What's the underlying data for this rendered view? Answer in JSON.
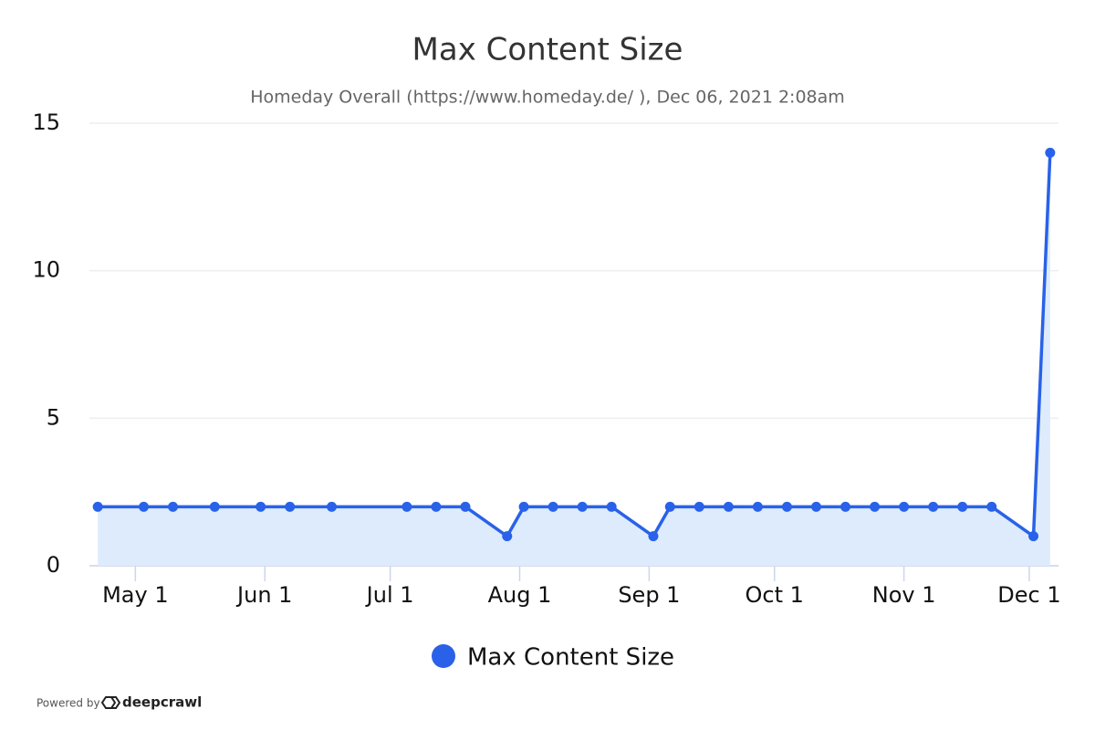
{
  "chart_data": {
    "type": "line",
    "title": "Max Content Size",
    "subtitle": "Homeday Overall (https://www.homeday.de/ ), Dec 06, 2021 2:08am",
    "x": [
      "Apr 22",
      "May 3",
      "May 10",
      "May 20",
      "May 31",
      "Jun 7",
      "Jun 17",
      "Jul 5",
      "Jul 12",
      "Jul 19",
      "Jul 29",
      "Aug 2",
      "Aug 9",
      "Aug 16",
      "Aug 23",
      "Sep 2",
      "Sep 6",
      "Sep 13",
      "Sep 20",
      "Sep 27",
      "Oct 4",
      "Oct 11",
      "Oct 18",
      "Oct 25",
      "Nov 1",
      "Nov 8",
      "Nov 15",
      "Nov 22",
      "Dec 2",
      "Dec 6"
    ],
    "series": [
      {
        "name": "Max Content Size",
        "color": "#2962e8",
        "values": [
          2,
          2,
          2,
          2,
          2,
          2,
          2,
          2,
          2,
          2,
          1,
          2,
          2,
          2,
          2,
          1,
          2,
          2,
          2,
          2,
          2,
          2,
          2,
          2,
          2,
          2,
          2,
          2,
          1,
          14
        ]
      }
    ],
    "area": true,
    "area_color": "#deebfc",
    "xlim": [
      "Apr 20",
      "Dec 8"
    ],
    "xticks": [
      "May 1",
      "Jun 1",
      "Jul 1",
      "Aug 1",
      "Sep 1",
      "Oct 1",
      "Nov 1",
      "Dec 1"
    ],
    "ylim": [
      0,
      15
    ],
    "yticks": [
      0,
      5,
      10,
      15
    ],
    "grid": true,
    "legend": "bottom"
  },
  "footer": {
    "text": "Powered by",
    "brand": "deepcrawl"
  }
}
